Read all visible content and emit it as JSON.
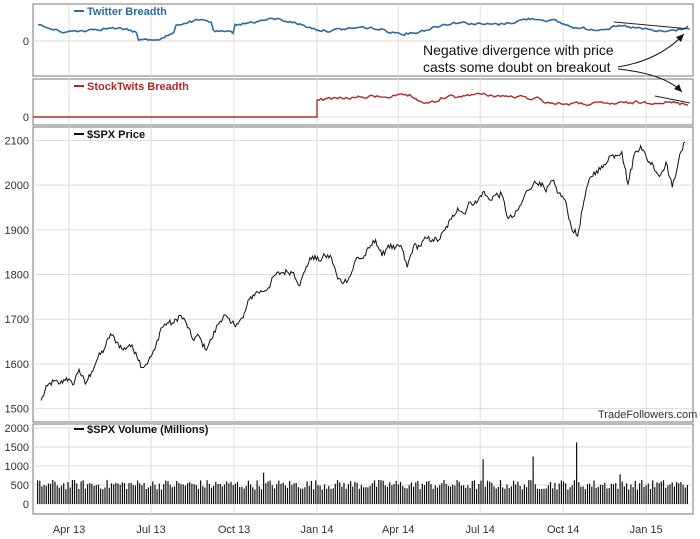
{
  "chart_data": [
    {
      "type": "line",
      "panel": "twitter",
      "series": [
        {
          "name": "Twitter Breadth",
          "color": "#2c6aa3"
        }
      ],
      "y_ticks": [
        "0"
      ],
      "grid": true
    },
    {
      "type": "line",
      "panel": "stocktwits",
      "series": [
        {
          "name": "StockTwits Breadth",
          "color": "#b02a2a"
        }
      ],
      "y_ticks": [
        "0"
      ],
      "grid": true
    },
    {
      "type": "line",
      "panel": "price",
      "series": [
        {
          "name": "$SPX Price",
          "color": "#111111",
          "points": [
            [
              "2013-03-01",
              1518
            ],
            [
              "2013-03-08",
              1551
            ],
            [
              "2013-03-15",
              1561
            ],
            [
              "2013-03-22",
              1556
            ],
            [
              "2013-03-29",
              1569
            ],
            [
              "2013-04-05",
              1553
            ],
            [
              "2013-04-12",
              1588
            ],
            [
              "2013-04-19",
              1555
            ],
            [
              "2013-04-26",
              1582
            ],
            [
              "2013-05-03",
              1614
            ],
            [
              "2013-05-10",
              1633
            ],
            [
              "2013-05-17",
              1667
            ],
            [
              "2013-05-24",
              1649
            ],
            [
              "2013-05-31",
              1631
            ],
            [
              "2013-06-07",
              1643
            ],
            [
              "2013-06-14",
              1626
            ],
            [
              "2013-06-21",
              1592
            ],
            [
              "2013-06-28",
              1606
            ],
            [
              "2013-07-05",
              1631
            ],
            [
              "2013-07-12",
              1680
            ],
            [
              "2013-07-19",
              1692
            ],
            [
              "2013-07-26",
              1691
            ],
            [
              "2013-08-02",
              1709
            ],
            [
              "2013-08-09",
              1691
            ],
            [
              "2013-08-16",
              1655
            ],
            [
              "2013-08-23",
              1663
            ],
            [
              "2013-08-30",
              1632
            ],
            [
              "2013-09-06",
              1655
            ],
            [
              "2013-09-13",
              1688
            ],
            [
              "2013-09-20",
              1710
            ],
            [
              "2013-09-27",
              1691
            ],
            [
              "2013-10-04",
              1690
            ],
            [
              "2013-10-11",
              1703
            ],
            [
              "2013-10-18",
              1745
            ],
            [
              "2013-10-25",
              1759
            ],
            [
              "2013-11-01",
              1762
            ],
            [
              "2013-11-08",
              1770
            ],
            [
              "2013-11-15",
              1798
            ],
            [
              "2013-11-22",
              1804
            ],
            [
              "2013-11-29",
              1806
            ],
            [
              "2013-12-06",
              1805
            ],
            [
              "2013-12-13",
              1775
            ],
            [
              "2013-12-20",
              1818
            ],
            [
              "2013-12-27",
              1841
            ],
            [
              "2014-01-03",
              1831
            ],
            [
              "2014-01-10",
              1842
            ],
            [
              "2014-01-17",
              1838
            ],
            [
              "2014-01-24",
              1790
            ],
            [
              "2014-01-31",
              1783
            ],
            [
              "2014-02-07",
              1797
            ],
            [
              "2014-02-14",
              1838
            ],
            [
              "2014-02-21",
              1836
            ],
            [
              "2014-02-28",
              1859
            ],
            [
              "2014-03-07",
              1878
            ],
            [
              "2014-03-14",
              1841
            ],
            [
              "2014-03-21",
              1866
            ],
            [
              "2014-03-28",
              1857
            ],
            [
              "2014-04-04",
              1865
            ],
            [
              "2014-04-11",
              1816
            ],
            [
              "2014-04-18",
              1864
            ],
            [
              "2014-04-25",
              1863
            ],
            [
              "2014-05-02",
              1881
            ],
            [
              "2014-05-09",
              1878
            ],
            [
              "2014-05-16",
              1877
            ],
            [
              "2014-05-23",
              1900
            ],
            [
              "2014-05-30",
              1924
            ],
            [
              "2014-06-06",
              1949
            ],
            [
              "2014-06-13",
              1936
            ],
            [
              "2014-06-20",
              1962
            ],
            [
              "2014-06-27",
              1960
            ],
            [
              "2014-07-04",
              1985
            ],
            [
              "2014-07-11",
              1967
            ],
            [
              "2014-07-18",
              1978
            ],
            [
              "2014-07-25",
              1978
            ],
            [
              "2014-08-01",
              1925
            ],
            [
              "2014-08-08",
              1931
            ],
            [
              "2014-08-15",
              1955
            ],
            [
              "2014-08-22",
              1988
            ],
            [
              "2014-08-29",
              2003
            ],
            [
              "2014-09-05",
              2007
            ],
            [
              "2014-09-12",
              1985
            ],
            [
              "2014-09-19",
              2010
            ],
            [
              "2014-09-26",
              1982
            ],
            [
              "2014-10-03",
              1967
            ],
            [
              "2014-10-10",
              1906
            ],
            [
              "2014-10-17",
              1886
            ],
            [
              "2014-10-24",
              1964
            ],
            [
              "2014-10-31",
              2018
            ],
            [
              "2014-11-07",
              2032
            ],
            [
              "2014-11-14",
              2039
            ],
            [
              "2014-11-21",
              2064
            ],
            [
              "2014-11-28",
              2067
            ],
            [
              "2014-12-05",
              2075
            ],
            [
              "2014-12-12",
              2002
            ],
            [
              "2014-12-19",
              2070
            ],
            [
              "2014-12-26",
              2088
            ],
            [
              "2015-01-02",
              2058
            ],
            [
              "2015-01-09",
              2044
            ],
            [
              "2015-01-16",
              2019
            ],
            [
              "2015-01-23",
              2051
            ],
            [
              "2015-01-30",
              1995
            ],
            [
              "2015-02-06",
              2055
            ],
            [
              "2015-02-13",
              2096
            ]
          ]
        }
      ],
      "y_ticks": [
        1500,
        1600,
        1700,
        1800,
        1900,
        2000,
        2100
      ],
      "ylim": [
        1470,
        2130
      ],
      "grid": true
    },
    {
      "type": "bar",
      "panel": "volume",
      "series": [
        {
          "name": "$SPX Volume (Millions)",
          "color": "#111111"
        }
      ],
      "y_ticks": [
        0,
        500,
        1000,
        1500,
        2000
      ],
      "ylim": [
        0,
        2000
      ],
      "grid": true
    }
  ],
  "x_axis": {
    "range": [
      "2013-02-20",
      "2015-02-22"
    ],
    "ticks": [
      {
        "date": "2013-04-01",
        "label": "Apr 13"
      },
      {
        "date": "2013-07-01",
        "label": "Jul 13"
      },
      {
        "date": "2013-10-01",
        "label": "Oct 13"
      },
      {
        "date": "2014-01-01",
        "label": "Jan 14"
      },
      {
        "date": "2014-04-01",
        "label": "Apr 14"
      },
      {
        "date": "2014-07-01",
        "label": "Jul 14"
      },
      {
        "date": "2014-10-01",
        "label": "Oct 14"
      },
      {
        "date": "2015-01-01",
        "label": "Jan 15"
      }
    ]
  },
  "annotation": {
    "line1": "Negative divergence with price",
    "line2": "casts some doubt on breakout"
  },
  "watermark": "TradeFollowers.com"
}
